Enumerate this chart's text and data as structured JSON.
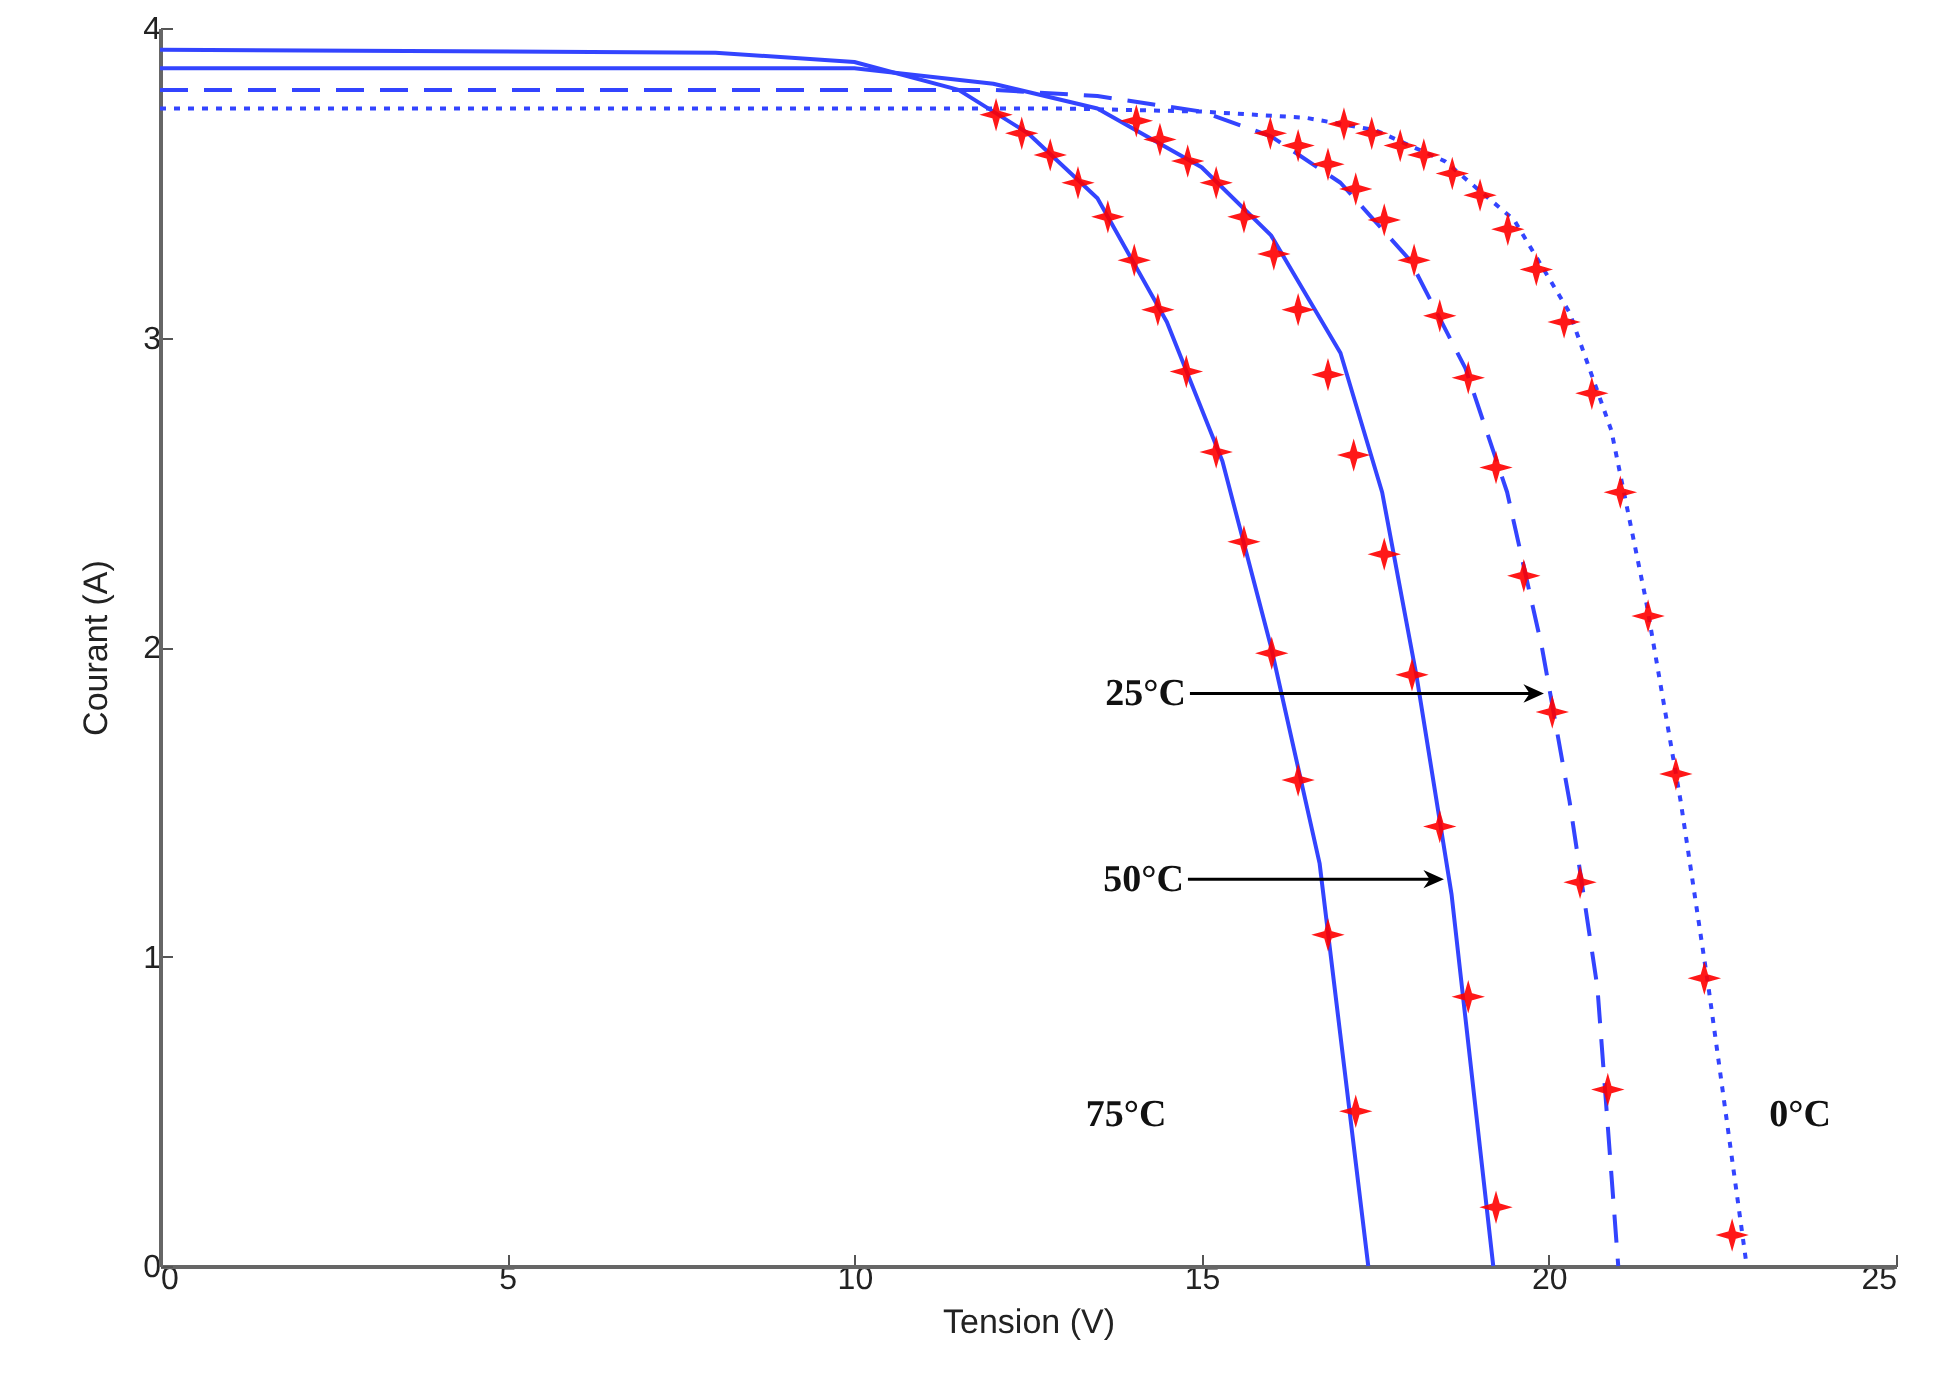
{
  "chart_data": {
    "type": "line",
    "xlabel": "Tension (V)",
    "ylabel": "Courant (A)",
    "xlim": [
      0,
      25
    ],
    "ylim": [
      0,
      4
    ],
    "xticks": [
      0,
      5,
      10,
      15,
      20,
      25
    ],
    "yticks": [
      0,
      1,
      2,
      3,
      4
    ],
    "series": [
      {
        "type": "line",
        "color": "#3344ff",
        "line_style": "solid",
        "x": [
          0,
          8,
          10,
          11.5,
          12.5,
          13.5,
          14.5,
          15.3,
          16,
          16.7,
          17.4
        ],
        "values": [
          3.93,
          3.92,
          3.89,
          3.8,
          3.66,
          3.45,
          3.05,
          2.6,
          2.0,
          1.3,
          0
        ]
      },
      {
        "type": "line",
        "color": "#3344ff",
        "line_style": "solid",
        "x": [
          0,
          10,
          12,
          13.5,
          15,
          16,
          17,
          17.6,
          18.1,
          18.6,
          19.2
        ],
        "values": [
          3.87,
          3.87,
          3.82,
          3.74,
          3.55,
          3.33,
          2.95,
          2.5,
          1.9,
          1.2,
          0
        ]
      },
      {
        "type": "line",
        "color": "#3344ff",
        "line_style": "dashed",
        "x": [
          0,
          12,
          13.5,
          15,
          16,
          17,
          18,
          18.8,
          19.4,
          19.9,
          20.3,
          20.7,
          21.0
        ],
        "values": [
          3.8,
          3.8,
          3.78,
          3.73,
          3.65,
          3.5,
          3.25,
          2.9,
          2.5,
          2.0,
          1.5,
          0.9,
          0
        ]
      },
      {
        "type": "line",
        "color": "#3344ff",
        "line_style": "dotted",
        "x": [
          0,
          13,
          15,
          16.5,
          17.5,
          18.5,
          19.5,
          20.3,
          20.9,
          21.4,
          21.9,
          22.3,
          22.85
        ],
        "values": [
          3.74,
          3.74,
          3.73,
          3.71,
          3.67,
          3.57,
          3.38,
          3.08,
          2.7,
          2.15,
          1.5,
          0.9,
          0
        ]
      },
      {
        "type": "scatter",
        "color": "#ff0000",
        "marker": "star",
        "x": [
          12.04,
          12.41,
          12.82,
          13.22,
          13.65,
          14.03,
          14.37,
          14.78,
          15.21,
          15.61,
          16.01,
          16.39,
          16.82,
          17.22
        ],
        "values": [
          3.72,
          3.66,
          3.59,
          3.5,
          3.39,
          3.25,
          3.09,
          2.89,
          2.63,
          2.34,
          1.98,
          1.57,
          1.07,
          0.5
        ]
      },
      {
        "type": "scatter",
        "color": "#ff0000",
        "marker": "star",
        "x": [
          14.06,
          14.4,
          14.8,
          15.21,
          15.61,
          16.04,
          16.39,
          16.82,
          17.19,
          17.63,
          18.03,
          18.43,
          18.84,
          19.24
        ],
        "values": [
          3.7,
          3.64,
          3.57,
          3.5,
          3.39,
          3.27,
          3.09,
          2.88,
          2.62,
          2.3,
          1.91,
          1.42,
          0.87,
          0.19
        ]
      },
      {
        "type": "scatter",
        "color": "#ff0000",
        "marker": "star",
        "x": [
          15.99,
          16.39,
          16.82,
          17.22,
          17.63,
          18.06,
          18.43,
          18.84,
          19.24,
          19.64,
          20.05,
          20.45,
          20.85
        ],
        "values": [
          3.66,
          3.62,
          3.56,
          3.48,
          3.38,
          3.25,
          3.07,
          2.87,
          2.58,
          2.23,
          1.79,
          1.24,
          0.57
        ]
      },
      {
        "type": "scatter",
        "color": "#ff0000",
        "marker": "star",
        "x": [
          17.05,
          17.45,
          17.86,
          18.2,
          18.61,
          19.01,
          19.41,
          19.82,
          20.22,
          20.62,
          21.03,
          21.43,
          21.83,
          22.24,
          22.64
        ],
        "values": [
          3.69,
          3.66,
          3.62,
          3.59,
          3.53,
          3.46,
          3.35,
          3.22,
          3.05,
          2.82,
          2.5,
          2.1,
          1.59,
          0.93,
          0.1
        ]
      }
    ],
    "annotations": [
      {
        "text": "25°C",
        "x": 19.93,
        "y": 1.85
      },
      {
        "text": "50°C",
        "x": 18.49,
        "y": 1.25
      },
      "75°C",
      "0°C"
    ]
  }
}
